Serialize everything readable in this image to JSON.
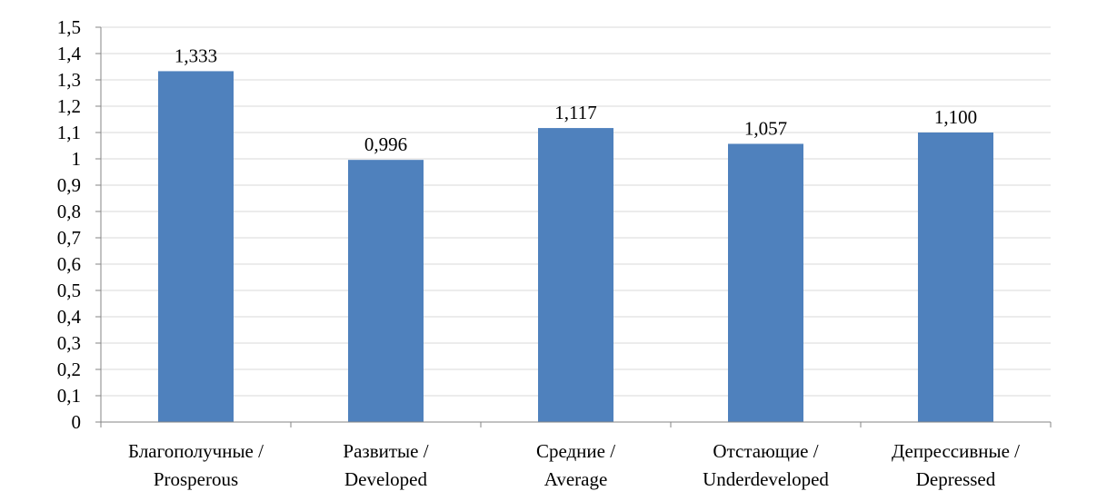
{
  "chart_data": {
    "type": "bar",
    "categories": [
      [
        "Благополучные /",
        "Prosperous"
      ],
      [
        "Развитые /",
        "Developed"
      ],
      [
        "Средние /",
        "Average"
      ],
      [
        "Отстающие /",
        "Underdeveloped"
      ],
      [
        "Депрессивные /",
        "Depressed"
      ]
    ],
    "values": [
      1.333,
      0.996,
      1.117,
      1.057,
      1.1
    ],
    "data_labels": [
      "1,333",
      "0,996",
      "1,117",
      "1,057",
      "1,100"
    ],
    "title": "",
    "xlabel": "",
    "ylabel": "",
    "ylim": [
      0,
      1.5
    ],
    "yticks": [
      0,
      0.1,
      0.2,
      0.3,
      0.4,
      0.5,
      0.6,
      0.7,
      0.8,
      0.9,
      1,
      1.1,
      1.2,
      1.3,
      1.4,
      1.5
    ],
    "ytick_labels": [
      "0",
      "0,1",
      "0,2",
      "0,3",
      "0,4",
      "0,5",
      "0,6",
      "0,7",
      "0,8",
      "0,9",
      "1",
      "1,1",
      "1,2",
      "1,3",
      "1,4",
      "1,5"
    ],
    "grid": true,
    "legend": "none",
    "bar_color": "#4F81BD",
    "grid_color": "#D9D9D9",
    "axis_color": "#868686"
  }
}
